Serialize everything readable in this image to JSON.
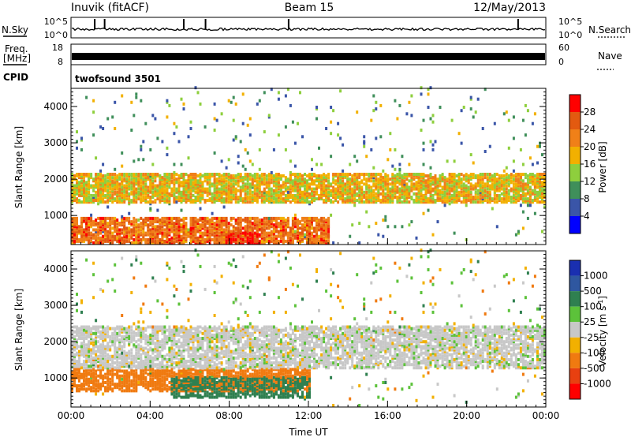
{
  "header": {
    "station": "Inuvik (fitACF)",
    "beam": "Beam 15",
    "date": "12/May/2013"
  },
  "nsky_panel": {
    "left_label": "N.Sky",
    "right_label": "N.Search",
    "left_ticks": [
      "10^5",
      "10^0"
    ],
    "right_ticks": [
      "10^5",
      "10^0"
    ]
  },
  "freq_panel": {
    "left_label_1": "Freq.",
    "left_label_2": "[MHz]",
    "right_label": "Nave",
    "left_ticks": [
      "18",
      "8"
    ],
    "right_ticks": [
      "60",
      "0"
    ]
  },
  "cpid_panel": {
    "label": "CPID",
    "program": "twofsound 3501"
  },
  "colors": {
    "power": [
      "#0000ff",
      "#3a55a8",
      "#3f8f5a",
      "#8ecf3d",
      "#f2b000",
      "#f08018",
      "#e35a10",
      "#ff0000"
    ],
    "velocity": [
      "#1a2fb0",
      "#2f57a0",
      "#2f8050",
      "#5cc23a",
      "#c8c8c8",
      "#f2b000",
      "#f07a10",
      "#e84010",
      "#ff0000"
    ]
  },
  "chart_data": [
    {
      "type": "heatmap",
      "name": "Power",
      "ylabel": "Slant Range [km]",
      "xlim": [
        "00:00",
        "24:00"
      ],
      "ylim": [
        200,
        4500
      ],
      "x_ticks": [
        "00:00",
        "04:00",
        "08:00",
        "12:00",
        "16:00",
        "20:00",
        "00:00"
      ],
      "y_ticks": [
        1000,
        2000,
        3000,
        4000
      ],
      "colorbar": {
        "label": "Power [dB]",
        "range": [
          0,
          32
        ],
        "ticks": [
          4,
          8,
          12,
          16,
          20,
          24,
          28
        ]
      },
      "features": [
        {
          "name": "main band",
          "t_start": 0,
          "t_end": 24,
          "range_start_km": 1300,
          "range_end_km": 2100,
          "power_db": 18
        },
        {
          "name": "near-range echoes",
          "t_start": 0,
          "t_end": 13,
          "range_start_km": 200,
          "range_end_km": 900,
          "power_db": 24
        },
        {
          "name": "strong patch",
          "t_start": 7.7,
          "t_end": 9.5,
          "range_start_km": 200,
          "range_end_km": 500,
          "power_db": 30
        }
      ]
    },
    {
      "type": "heatmap",
      "name": "Velocity",
      "ylabel": "Slant Range [km]",
      "xlabel": "Time UT",
      "xlim": [
        "00:00",
        "24:00"
      ],
      "ylim": [
        200,
        4500
      ],
      "x_ticks": [
        "00:00",
        "04:00",
        "08:00",
        "12:00",
        "16:00",
        "20:00",
        "00:00"
      ],
      "y_ticks": [
        1000,
        2000,
        3000,
        4000
      ],
      "colorbar": {
        "label": "Velocity [m s-1]",
        "ticks": [
          "1000",
          "500",
          "100",
          "25",
          "-25",
          "-100",
          "-500",
          "-1000"
        ]
      },
      "features": [
        {
          "name": "ground scatter band",
          "t_start": 0,
          "t_end": 24,
          "range_start_km": 1200,
          "range_end_km": 2400,
          "velocity_ms": 0
        },
        {
          "name": "near-range receding",
          "t_start": 0,
          "t_end": 12,
          "range_start_km": 600,
          "range_end_km": 1200,
          "velocity_ms": -150
        },
        {
          "name": "near-range approaching",
          "t_start": 5,
          "t_end": 12,
          "range_start_km": 400,
          "range_end_km": 1000,
          "velocity_ms": 400
        }
      ]
    }
  ]
}
